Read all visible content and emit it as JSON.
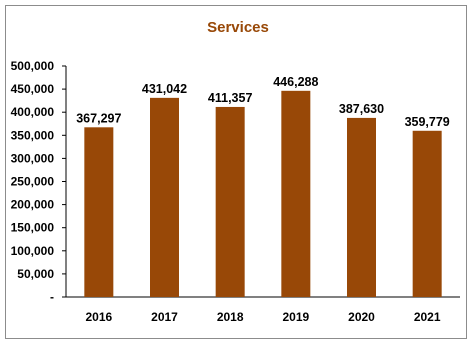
{
  "chart_data": {
    "type": "bar",
    "title": "Services",
    "xlabel": "",
    "ylabel": "",
    "categories": [
      "2016",
      "2017",
      "2018",
      "2019",
      "2020",
      "2021"
    ],
    "values": [
      367297,
      431042,
      411357,
      446288,
      387630,
      359779
    ],
    "data_labels": [
      "367,297",
      "431,042",
      "411,357",
      "446,288",
      "387,630",
      "359,779"
    ],
    "ylim": [
      0,
      500000
    ],
    "yticks": [
      0,
      50000,
      100000,
      150000,
      200000,
      250000,
      300000,
      350000,
      400000,
      450000,
      500000
    ],
    "ytick_labels": [
      "-",
      "50,000",
      "100,000",
      "150,000",
      "200,000",
      "250,000",
      "300,000",
      "350,000",
      "400,000",
      "450,000",
      "500,000"
    ],
    "grid": false,
    "legend": "none",
    "colors": {
      "bar": "#984807",
      "title": "#984807",
      "axis": "#000000",
      "border": "#8c8c8c"
    }
  }
}
